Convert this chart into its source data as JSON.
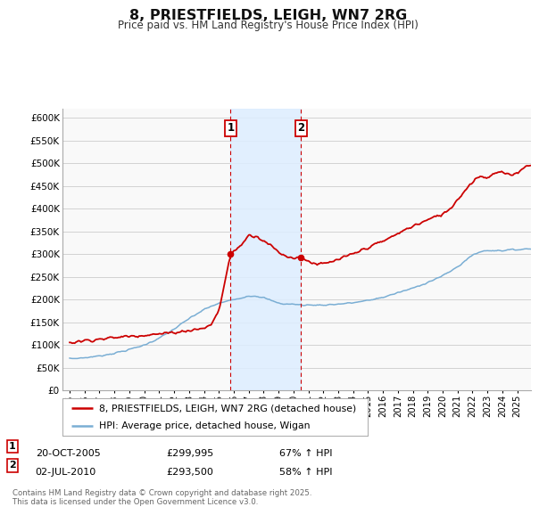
{
  "title": "8, PRIESTFIELDS, LEIGH, WN7 2RG",
  "subtitle": "Price paid vs. HM Land Registry's House Price Index (HPI)",
  "ylim": [
    0,
    620000
  ],
  "yticks": [
    0,
    50000,
    100000,
    150000,
    200000,
    250000,
    300000,
    350000,
    400000,
    450000,
    500000,
    550000,
    600000
  ],
  "ytick_labels": [
    "£0",
    "£50K",
    "£100K",
    "£150K",
    "£200K",
    "£250K",
    "£300K",
    "£350K",
    "£400K",
    "£450K",
    "£500K",
    "£550K",
    "£600K"
  ],
  "red_color": "#cc0000",
  "blue_color": "#7aaed4",
  "shade_color": "#ddeeff",
  "vline_color": "#cc0000",
  "transaction1": {
    "date": "20-OCT-2005",
    "price": 299995,
    "hpi_change": "67% ↑ HPI",
    "label": "1",
    "year": 2005.79
  },
  "transaction2": {
    "date": "02-JUL-2010",
    "price": 293500,
    "hpi_change": "58% ↑ HPI",
    "label": "2",
    "year": 2010.5
  },
  "legend_red": "8, PRIESTFIELDS, LEIGH, WN7 2RG (detached house)",
  "legend_blue": "HPI: Average price, detached house, Wigan",
  "footer": "Contains HM Land Registry data © Crown copyright and database right 2025.\nThis data is licensed under the Open Government Licence v3.0.",
  "background_color": "#ffffff",
  "plot_bg_color": "#f9f9f9",
  "grid_color": "#cccccc",
  "xlim_left": 1994.5,
  "xlim_right": 2025.9
}
